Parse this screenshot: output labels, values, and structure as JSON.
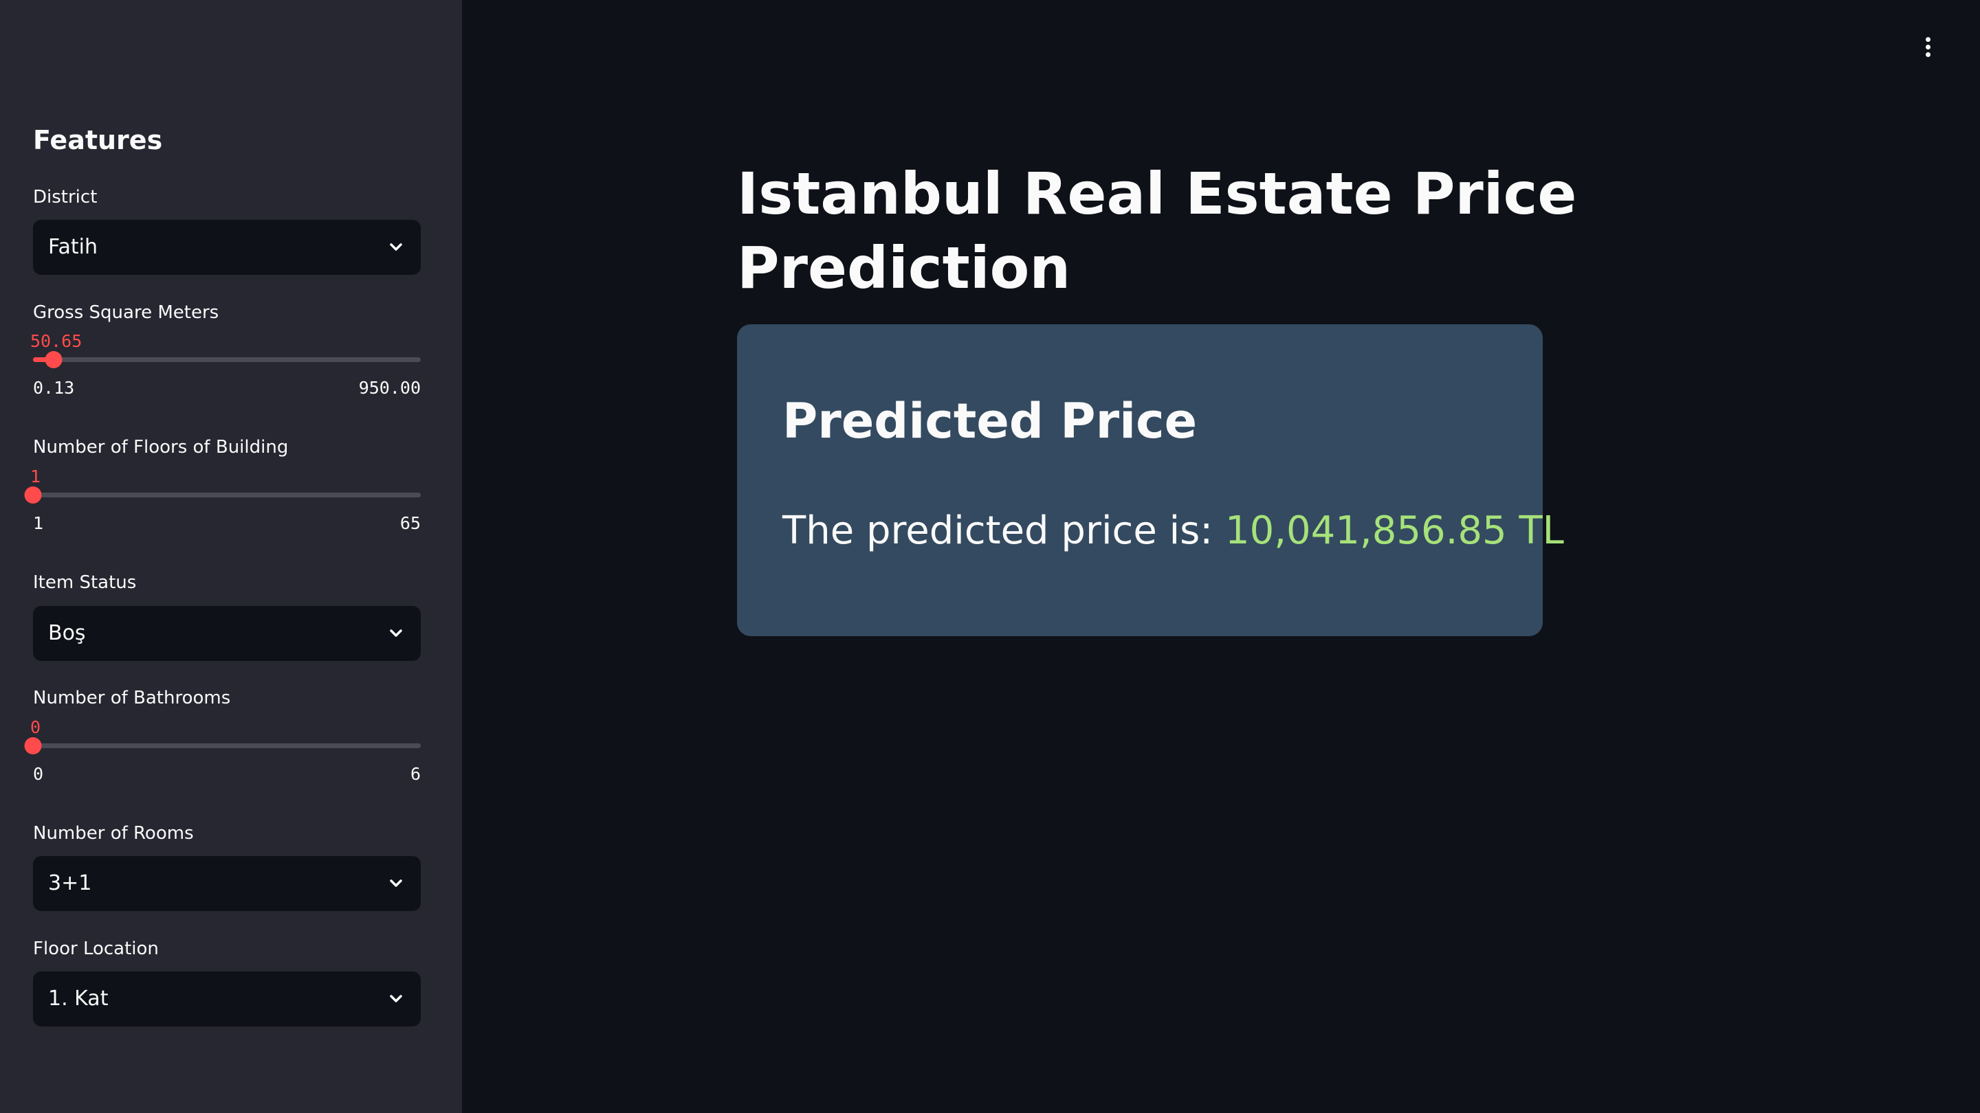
{
  "sidebar": {
    "heading": "Features",
    "district": {
      "label": "District",
      "value": "Fatih"
    },
    "gross_square_meters": {
      "label": "Gross Square Meters",
      "value": "50.65",
      "min": "0.13",
      "max": "950.00",
      "fraction": 0.053
    },
    "floors_of_building": {
      "label": "Number of Floors of Building",
      "value": "1",
      "min": "1",
      "max": "65",
      "fraction": 0.0
    },
    "item_status": {
      "label": "Item Status",
      "value": "Boş"
    },
    "bathrooms": {
      "label": "Number of Bathrooms",
      "value": "0",
      "min": "0",
      "max": "6",
      "fraction": 0.0
    },
    "rooms": {
      "label": "Number of Rooms",
      "value": "3+1"
    },
    "floor_location": {
      "label": "Floor Location",
      "value": "1. Kat"
    }
  },
  "main": {
    "title": "Istanbul Real Estate Price Prediction",
    "result": {
      "heading": "Predicted Price",
      "prefix": "The predicted price is: ",
      "amount": "10,041,856.85 TL"
    }
  },
  "colors": {
    "accent": "#ff4b4b",
    "price": "#a6e27a",
    "card": "#344a60",
    "sidebar": "#262730",
    "background": "#0e1117"
  },
  "icons": {
    "select": "chevron-down-icon",
    "menu": "vertical-dots-icon"
  }
}
